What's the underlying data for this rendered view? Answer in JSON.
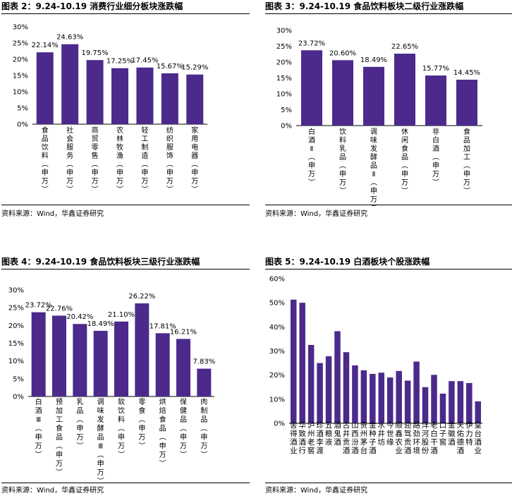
{
  "colors": {
    "bar": "#4B2A8C",
    "axis": "#000000",
    "text": "#000000"
  },
  "source_text": "资料来源：Wind，华鑫证券研究",
  "chart_data": [
    {
      "type": "bar",
      "title": "图表 2：9.24-10.19 消费行业细分板块涨跌幅",
      "categories": [
        "食品饮料(申万)",
        "社会服务(申万)",
        "商贸零售(申万)",
        "农林牧渔(申万)",
        "轻工制造(申万)",
        "纺织服饰(申万)",
        "家用电器(申万)"
      ],
      "values": [
        22.14,
        24.63,
        19.75,
        17.25,
        17.45,
        15.67,
        15.29
      ],
      "value_labels": [
        "22.14%",
        "24.63%",
        "19.75%",
        "17.25%",
        "17.45%",
        "15.67%",
        "15.29%"
      ],
      "ylim": [
        0,
        30
      ],
      "yticks": [
        "0%",
        "5%",
        "10%",
        "15%",
        "20%",
        "25%",
        "30%"
      ],
      "xlabel": "",
      "ylabel": ""
    },
    {
      "type": "bar",
      "title": "图表 3：9.24-10.19 食品饮料板块二级行业涨跌幅",
      "categories": [
        "白酒Ⅱ(申万)",
        "饮料乳品(申万)",
        "调味发酵品Ⅱ(申万)",
        "休闲食品(申万)",
        "非白酒(申万)",
        "食品加工(申万)"
      ],
      "values": [
        23.72,
        20.6,
        18.49,
        22.65,
        15.77,
        14.45
      ],
      "value_labels": [
        "23.72%",
        "20.60%",
        "18.49%",
        "22.65%",
        "15.77%",
        "14.45%"
      ],
      "ylim": [
        0,
        30
      ],
      "yticks": [
        "0%",
        "5%",
        "10%",
        "15%",
        "20%",
        "25%",
        "30%"
      ],
      "xlabel": "",
      "ylabel": ""
    },
    {
      "type": "bar",
      "title": "图表 4：9.24-10.19 食品饮料板块三级行业涨跌幅",
      "categories": [
        "白酒Ⅲ(申万)",
        "预加工食品(申万)",
        "乳品(申万)",
        "调味发酵品Ⅲ(申万)",
        "软饮料(申万)",
        "零食(申万)",
        "烘焙食品(申万)",
        "保健品(申万)",
        "肉制品(申万)"
      ],
      "values": [
        23.72,
        22.76,
        20.42,
        18.49,
        21.1,
        26.22,
        17.81,
        16.21,
        7.83
      ],
      "value_labels": [
        "23.72%",
        "22.76%",
        "20.42%",
        "18.49%",
        "21.10%",
        "26.22%",
        "17.81%",
        "16.21%",
        "7.83%"
      ],
      "ylim": [
        0,
        30
      ],
      "yticks": [
        "0%",
        "5%",
        "10%",
        "15%",
        "20%",
        "25%",
        "30%"
      ],
      "xlabel": "",
      "ylabel": ""
    },
    {
      "type": "bar",
      "title": "图表 5：9.24-10.19 白酒板块个股涨跌幅",
      "categories": [
        "舍得酒业",
        "华致酒行",
        "泸州老窖",
        "珍酒李渡",
        "五粮液",
        "酒鬼酒",
        "古井贡酒",
        "山西汾酒",
        "贵州茅台",
        "金种子酒",
        "水井坊",
        "今世缘",
        "顺鑫农业",
        "迎驾贡酒",
        "路劲环境",
        "洋河股份",
        "老白干酒",
        "口子窖",
        "金徽酒",
        "天佑德酒",
        "伊力特",
        "皇台酒业"
      ],
      "values": [
        51.3,
        50.0,
        32.5,
        25.0,
        27.8,
        38.2,
        29.5,
        24.0,
        22.0,
        20.5,
        21.0,
        19.0,
        21.7,
        17.7,
        25.6,
        15.0,
        20.1,
        12.3,
        17.5,
        17.5,
        16.7,
        9.1
      ],
      "ylim": [
        0,
        60
      ],
      "yticks": [
        "0%",
        "10%",
        "20%",
        "30%",
        "40%",
        "50%",
        "60%"
      ],
      "xlabel": "",
      "ylabel": ""
    }
  ]
}
